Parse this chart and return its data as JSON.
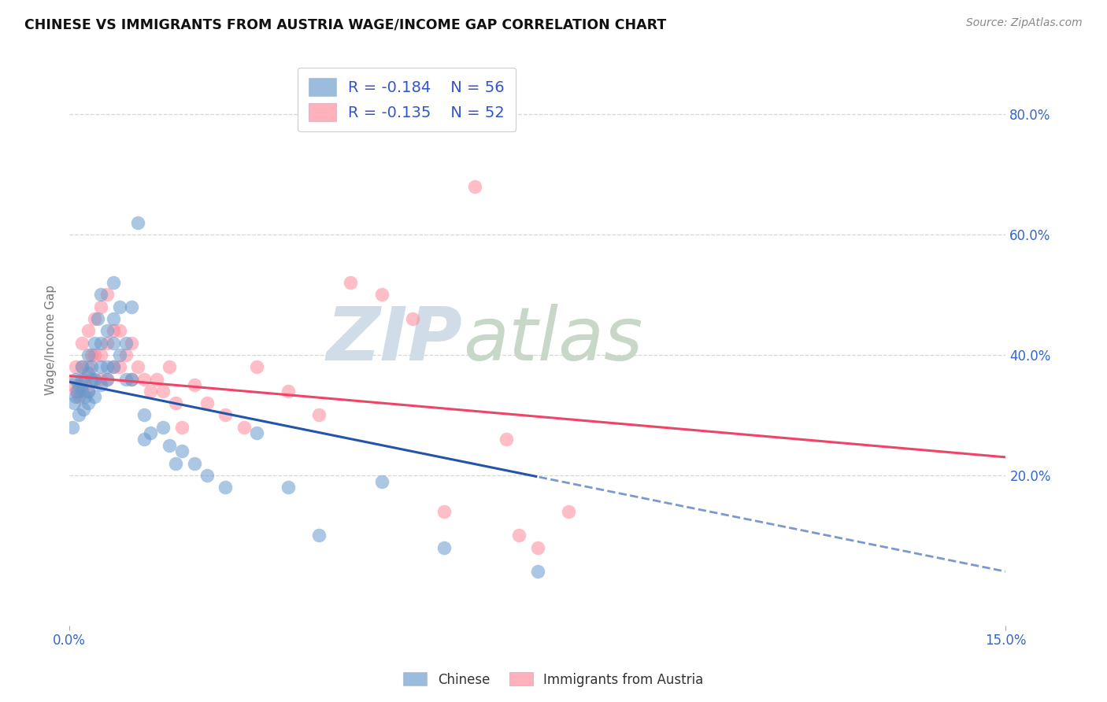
{
  "title": "CHINESE VS IMMIGRANTS FROM AUSTRIA WAGE/INCOME GAP CORRELATION CHART",
  "source": "Source: ZipAtlas.com",
  "ylabel": "Wage/Income Gap",
  "xlim": [
    0.0,
    0.15
  ],
  "ylim": [
    -0.05,
    0.9
  ],
  "yticks": [
    0.2,
    0.4,
    0.6,
    0.8
  ],
  "ytick_labels": [
    "20.0%",
    "40.0%",
    "60.0%",
    "80.0%"
  ],
  "blue_R": -0.184,
  "blue_N": 56,
  "pink_R": -0.135,
  "pink_N": 52,
  "blue_label": "Chinese",
  "pink_label": "Immigrants from Austria",
  "blue_color": "#6699CC",
  "pink_color": "#FF8899",
  "trend_blue_color": "#2255AA",
  "trend_pink_color": "#EE4466",
  "blue_scatter_x": [
    0.0005,
    0.0008,
    0.001,
    0.001,
    0.0012,
    0.0015,
    0.0015,
    0.002,
    0.002,
    0.002,
    0.0022,
    0.0025,
    0.003,
    0.003,
    0.003,
    0.003,
    0.0035,
    0.0035,
    0.004,
    0.004,
    0.004,
    0.0045,
    0.005,
    0.005,
    0.005,
    0.005,
    0.006,
    0.006,
    0.006,
    0.007,
    0.007,
    0.007,
    0.007,
    0.008,
    0.008,
    0.009,
    0.009,
    0.01,
    0.01,
    0.011,
    0.012,
    0.012,
    0.013,
    0.015,
    0.016,
    0.017,
    0.018,
    0.02,
    0.022,
    0.025,
    0.03,
    0.035,
    0.04,
    0.05,
    0.06,
    0.075
  ],
  "blue_scatter_y": [
    0.28,
    0.32,
    0.33,
    0.36,
    0.34,
    0.35,
    0.3,
    0.34,
    0.36,
    0.38,
    0.31,
    0.33,
    0.32,
    0.34,
    0.37,
    0.4,
    0.36,
    0.38,
    0.33,
    0.36,
    0.42,
    0.46,
    0.35,
    0.38,
    0.42,
    0.5,
    0.36,
    0.38,
    0.44,
    0.38,
    0.42,
    0.46,
    0.52,
    0.4,
    0.48,
    0.36,
    0.42,
    0.36,
    0.48,
    0.62,
    0.3,
    0.26,
    0.27,
    0.28,
    0.25,
    0.22,
    0.24,
    0.22,
    0.2,
    0.18,
    0.27,
    0.18,
    0.1,
    0.19,
    0.08,
    0.04
  ],
  "pink_scatter_x": [
    0.0005,
    0.001,
    0.001,
    0.0015,
    0.002,
    0.002,
    0.002,
    0.0025,
    0.003,
    0.003,
    0.003,
    0.0035,
    0.004,
    0.004,
    0.004,
    0.005,
    0.005,
    0.005,
    0.006,
    0.006,
    0.006,
    0.007,
    0.007,
    0.008,
    0.008,
    0.009,
    0.01,
    0.01,
    0.011,
    0.012,
    0.013,
    0.014,
    0.015,
    0.016,
    0.017,
    0.018,
    0.02,
    0.022,
    0.025,
    0.028,
    0.03,
    0.035,
    0.04,
    0.045,
    0.05,
    0.055,
    0.06,
    0.065,
    0.07,
    0.072,
    0.075,
    0.08
  ],
  "pink_scatter_y": [
    0.35,
    0.34,
    0.38,
    0.33,
    0.35,
    0.38,
    0.42,
    0.36,
    0.34,
    0.38,
    0.44,
    0.4,
    0.36,
    0.4,
    0.46,
    0.36,
    0.4,
    0.48,
    0.36,
    0.42,
    0.5,
    0.38,
    0.44,
    0.38,
    0.44,
    0.4,
    0.36,
    0.42,
    0.38,
    0.36,
    0.34,
    0.36,
    0.34,
    0.38,
    0.32,
    0.28,
    0.35,
    0.32,
    0.3,
    0.28,
    0.38,
    0.34,
    0.3,
    0.52,
    0.5,
    0.46,
    0.14,
    0.68,
    0.26,
    0.1,
    0.08,
    0.14
  ],
  "watermark_zip": "ZIP",
  "watermark_atlas": "atlas",
  "watermark_color_zip": "#D0DCE8",
  "watermark_color_atlas": "#C8D8C8",
  "background_color": "#FFFFFF",
  "grid_color": "#CCCCCC",
  "blue_solid_xend": 0.075,
  "pink_solid_xend": 0.15,
  "trend_xstart": 0.0,
  "trend_xend": 0.15,
  "blue_intercept": 0.355,
  "blue_slope": -2.1,
  "pink_intercept": 0.365,
  "pink_slope": -0.9
}
